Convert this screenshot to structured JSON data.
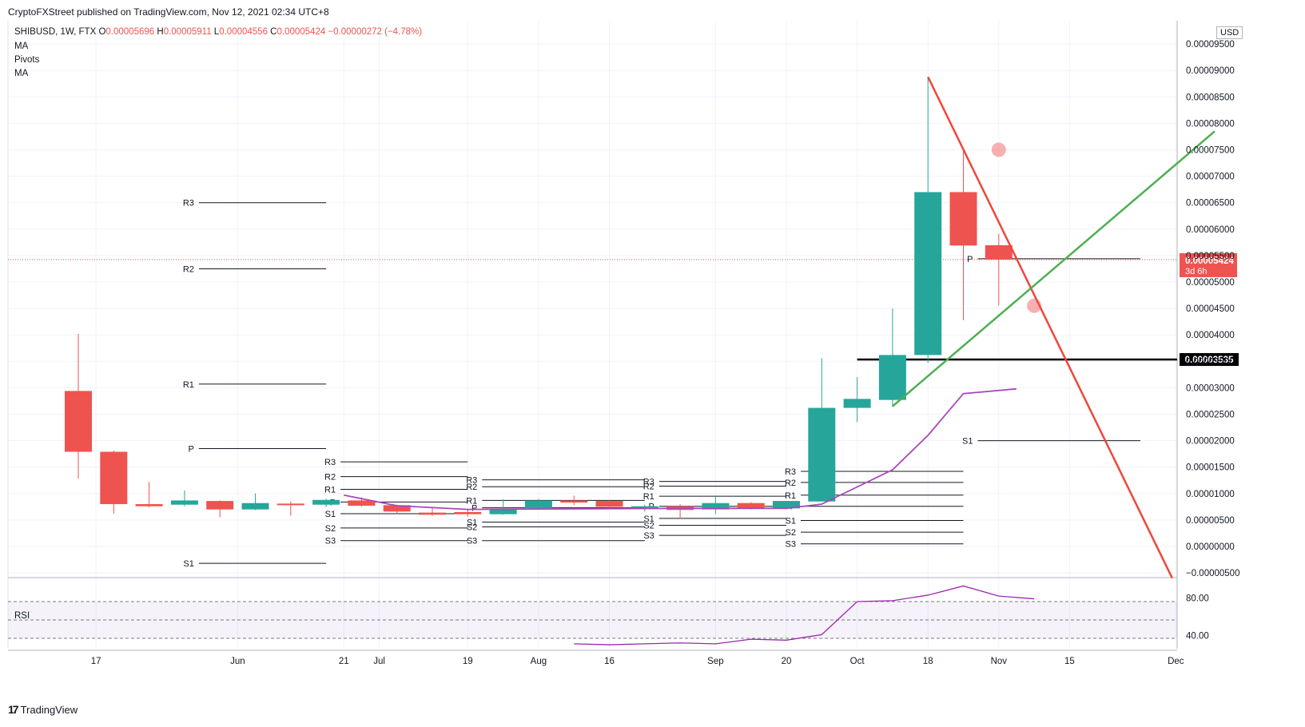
{
  "header": {
    "publisher": "CryptoFXStreet published on TradingView.com, Nov 12, 2021 02:34 UTC+8"
  },
  "legend": {
    "symbol": "SHIBUSD, 1W, FTX",
    "open_label": "O",
    "open": "0.00005696",
    "high_label": "H",
    "high": "0.00005911",
    "low_label": "L",
    "low": "0.00004556",
    "close_label": "C",
    "close": "0.00005424",
    "change": "−0.00000272 (−4.78%)",
    "indicators": [
      "MA",
      "Pivots",
      "MA"
    ]
  },
  "rsi_label": "RSI",
  "currency_button": "USD",
  "footer": {
    "brand": "TradingView"
  },
  "colors": {
    "up": "#26a69a",
    "down": "#ef5350",
    "ma": "#ab47bc",
    "trend_down": "#f0463a",
    "trend_up": "#4caf50",
    "rsi_line": "#9c27b0"
  },
  "chart_data": {
    "type": "candlestick",
    "symbol": "SHIBUSD",
    "timeframe": "1W",
    "exchange": "FTX",
    "y_axis_labels": [
      "0.00009500",
      "0.00009000",
      "0.00008500",
      "0.00008000",
      "0.00007500",
      "0.00007000",
      "0.00006500",
      "0.00006000",
      "0.00005500",
      "0.00005000",
      "0.00004500",
      "0.00004000",
      "0.00003500",
      "0.00003000",
      "0.00002500",
      "0.00002000",
      "0.00001500",
      "0.00001000",
      "0.00000500",
      "0.00000000",
      "−0.00000500"
    ],
    "x_axis_labels": [
      {
        "label": "17",
        "week": 1.5
      },
      {
        "label": "Jun",
        "week": 5.5
      },
      {
        "label": "21",
        "week": 8.5
      },
      {
        "label": "Jul",
        "week": 9.5
      },
      {
        "label": "19",
        "week": 12
      },
      {
        "label": "Aug",
        "week": 14
      },
      {
        "label": "16",
        "week": 16
      },
      {
        "label": "Sep",
        "week": 19
      },
      {
        "label": "20",
        "week": 21
      },
      {
        "label": "Oct",
        "week": 23
      },
      {
        "label": "18",
        "week": 25
      },
      {
        "label": "Nov",
        "week": 27
      },
      {
        "label": "15",
        "week": 29
      },
      {
        "label": "Dec",
        "week": 32
      }
    ],
    "candles": [
      {
        "o": 2.94e-05,
        "h": 4.02e-05,
        "l": 1.28e-05,
        "c": 1.79e-05
      },
      {
        "o": 1.79e-05,
        "h": 1.81e-05,
        "l": 6.2e-06,
        "c": 8e-06
      },
      {
        "o": 8e-06,
        "h": 1.22e-05,
        "l": 7.4e-06,
        "c": 7.6e-06
      },
      {
        "o": 7.9e-06,
        "h": 1.06e-05,
        "l": 7.6e-06,
        "c": 8.7e-06
      },
      {
        "o": 8.6e-06,
        "h": 8.7e-06,
        "l": 5.5e-06,
        "c": 7e-06
      },
      {
        "o": 7e-06,
        "h": 1e-05,
        "l": 6.9e-06,
        "c": 8.2e-06
      },
      {
        "o": 8.1e-06,
        "h": 8.5e-06,
        "l": 5.8e-06,
        "c": 8e-06
      },
      {
        "o": 7.9e-06,
        "h": 9e-06,
        "l": 7.4e-06,
        "c": 8.8e-06
      },
      {
        "o": 8.7e-06,
        "h": 9.3e-06,
        "l": 7.5e-06,
        "c": 7.7e-06
      },
      {
        "o": 7.8e-06,
        "h": 7.9e-06,
        "l": 6.2e-06,
        "c": 6.6e-06
      },
      {
        "o": 6.4e-06,
        "h": 7.3e-06,
        "l": 5.8e-06,
        "c": 6e-06
      },
      {
        "o": 6.5e-06,
        "h": 7.1e-06,
        "l": 5.6e-06,
        "c": 6.1e-06
      },
      {
        "o": 6.1e-06,
        "h": 8.9e-06,
        "l": 6e-06,
        "c": 7.1e-06
      },
      {
        "o": 7.2e-06,
        "h": 9e-06,
        "l": 7e-06,
        "c": 8.7e-06
      },
      {
        "o": 8.7e-06,
        "h": 9.6e-06,
        "l": 7.8e-06,
        "c": 8.3e-06
      },
      {
        "o": 8.6e-06,
        "h": 8.8e-06,
        "l": 7.2e-06,
        "c": 7.5e-06
      },
      {
        "o": 7.4e-06,
        "h": 7.9e-06,
        "l": 6.6e-06,
        "c": 7.6e-06
      },
      {
        "o": 7.6e-06,
        "h": 8e-06,
        "l": 5.2e-06,
        "c": 6.9e-06
      },
      {
        "o": 7e-06,
        "h": 9.5e-06,
        "l": 6.1e-06,
        "c": 8.2e-06
      },
      {
        "o": 8.2e-06,
        "h": 8.4e-06,
        "l": 7e-06,
        "c": 7.2e-06
      },
      {
        "o": 7.2e-06,
        "h": 8.6e-06,
        "l": 7e-06,
        "c": 8.6e-06
      },
      {
        "o": 8.5e-06,
        "h": 3.56e-05,
        "l": 8.5e-06,
        "c": 2.62e-05
      },
      {
        "o": 2.62e-05,
        "h": 3.2e-05,
        "l": 2.35e-05,
        "c": 2.79e-05
      },
      {
        "o": 2.77e-05,
        "h": 4.5e-05,
        "l": 2.64e-05,
        "c": 3.62e-05
      },
      {
        "o": 3.62e-05,
        "h": 8.87e-05,
        "l": 3.47e-05,
        "c": 6.7e-05
      },
      {
        "o": 6.7e-05,
        "h": 7.5e-05,
        "l": 4.28e-05,
        "c": 5.69e-05
      },
      {
        "o": 5.696e-05,
        "h": 5.911e-05,
        "l": 4.556e-05,
        "c": 5.424e-05
      }
    ],
    "ma_line": [
      {
        "week": 8.5,
        "v": 9.7e-06
      },
      {
        "week": 10,
        "v": 7.7e-06
      },
      {
        "week": 12,
        "v": 7e-06
      },
      {
        "week": 15,
        "v": 7.1e-06
      },
      {
        "week": 18,
        "v": 7.2e-06
      },
      {
        "week": 21,
        "v": 7.2e-06
      },
      {
        "week": 22,
        "v": 8e-06
      },
      {
        "week": 24,
        "v": 1.45e-05
      },
      {
        "week": 25,
        "v": 2.1e-05
      },
      {
        "week": 26,
        "v": 2.89e-05
      },
      {
        "week": 27.5,
        "v": 2.98e-05
      }
    ],
    "pivot_sets": [
      {
        "w0": 4,
        "w1": 8,
        "labelled": true,
        "levels": {
          "R3": 6.5e-05,
          "R2": 5.25e-05,
          "R1": 3.07e-05,
          "P": 1.85e-05,
          "S1": -3.2e-06
        }
      },
      {
        "w0": 8,
        "w1": 12,
        "labelled": true,
        "levels": {
          "R3": 1.6e-05,
          "R2": 1.32e-05,
          "R1": 1.08e-05,
          "P": 8.4e-06,
          "S1": 6.2e-06,
          "S2": 3.5e-06,
          "S3": 1.1e-06
        }
      },
      {
        "w0": 12,
        "w1": 17,
        "labelled": true,
        "levels": {
          "R3": 1.26e-05,
          "R2": 1.13e-05,
          "R1": 8.7e-06,
          "P": 7.3e-06,
          "S1": 4.6e-06,
          "S2": 3.7e-06,
          "S3": 1.1e-06
        }
      },
      {
        "w0": 17,
        "w1": 21,
        "labelled": true,
        "levels": {
          "R3": 1.23e-05,
          "R2": 1.14e-05,
          "R1": 9.5e-06,
          "P": 7.6e-06,
          "S1": 5.3e-06,
          "S2": 4e-06,
          "S3": 2.1e-06
        }
      },
      {
        "w0": 21,
        "w1": 26,
        "labelled": true,
        "levels": {
          "R3": 1.42e-05,
          "R2": 1.21e-05,
          "R1": 9.7e-06,
          "P": 7.6e-06,
          "S1": 4.9e-06,
          "S2": 2.7e-06,
          "S3": 5e-07
        }
      },
      {
        "w0": 26,
        "w1": 31,
        "labelled": true,
        "levels": {
          "P": 5.44e-05,
          "S1": 2e-05
        }
      }
    ],
    "horizontal_line": {
      "value": 3.535e-05,
      "w0": 23,
      "label": "0.00003535"
    },
    "last_price": {
      "value": 5.424e-05,
      "label": "0.00005424",
      "countdown": "3d 6h"
    },
    "trendlines": [
      {
        "name": "descending",
        "from": {
          "week": 25,
          "v": 8.88e-05
        },
        "to": {
          "week": 31.9,
          "v": -6e-06
        }
      },
      {
        "name": "ascending",
        "from": {
          "week": 24.0,
          "v": 2.65e-05
        },
        "to": {
          "week": 33.1,
          "v": 7.85e-05
        }
      }
    ],
    "markers": [
      {
        "week": 27,
        "v": 7.5e-05
      },
      {
        "week": 28,
        "v": 4.55e-05
      }
    ],
    "rsi": {
      "label": "RSI",
      "axis_labels": [
        "80.00",
        "40.00"
      ],
      "upper": 70,
      "middle": 50,
      "lower": 30,
      "values": [
        {
          "week": 15,
          "v": 24
        },
        {
          "week": 16,
          "v": 23
        },
        {
          "week": 17,
          "v": 24
        },
        {
          "week": 18,
          "v": 25
        },
        {
          "week": 19,
          "v": 24
        },
        {
          "week": 20,
          "v": 29
        },
        {
          "week": 21,
          "v": 28
        },
        {
          "week": 22,
          "v": 34
        },
        {
          "week": 23,
          "v": 70
        },
        {
          "week": 24,
          "v": 71
        },
        {
          "week": 25,
          "v": 77
        },
        {
          "week": 26,
          "v": 87
        },
        {
          "week": 27,
          "v": 76
        },
        {
          "week": 28,
          "v": 73
        }
      ]
    }
  }
}
